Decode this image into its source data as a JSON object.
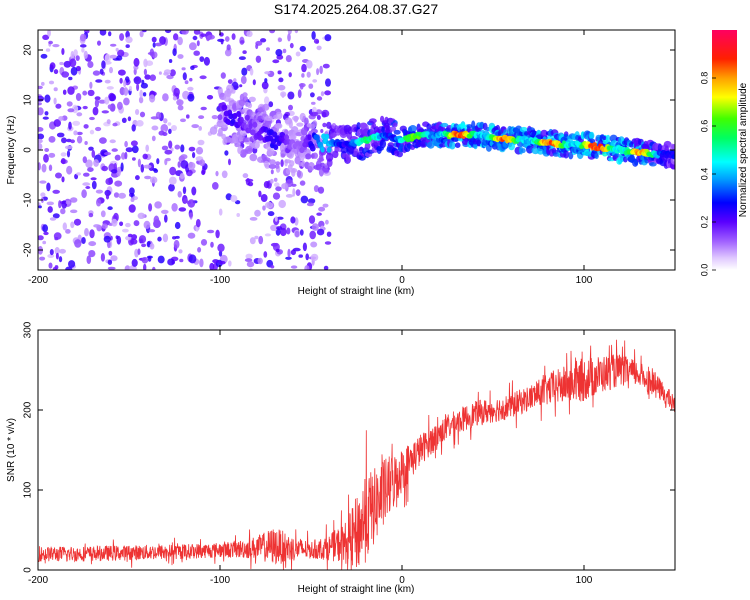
{
  "chart_data": [
    {
      "type": "heatmap",
      "title": "S174.2025.264.08.37.G27",
      "xlabel": "Height of straight line (km)",
      "ylabel": "Frequency (Hz)",
      "xlim": [
        -200,
        150
      ],
      "ylim": [
        -24,
        24
      ],
      "x_ticks": [
        -200,
        -100,
        0,
        100
      ],
      "y_ticks": [
        -20,
        -10,
        0,
        10,
        20
      ],
      "colorbar": {
        "label": "Normalized spectral amplitude",
        "range": [
          0,
          1
        ],
        "ticks": [
          "0.0",
          "0.2",
          "0.4",
          "0.6",
          "0.8"
        ],
        "colors": [
          "#ffffff",
          "#d8b8ff",
          "#8a2be2",
          "#0000ff",
          "#00ffff",
          "#00ff00",
          "#ffff00",
          "#ff8000",
          "#ff0000",
          "#ff0080"
        ]
      },
      "ridge": {
        "x": [
          -100,
          -90,
          -80,
          -70,
          -60,
          -50,
          -40,
          -30,
          -20,
          -10,
          0,
          10,
          20,
          30,
          40,
          50,
          60,
          70,
          80,
          90,
          100,
          110,
          120,
          130,
          140,
          150
        ],
        "freq": [
          8,
          6,
          4,
          2,
          1,
          1.5,
          1.5,
          1,
          2,
          3,
          2,
          3,
          3,
          3,
          3,
          2.5,
          2,
          2,
          1.5,
          1,
          1,
          0.5,
          0,
          -0.5,
          -0.8,
          -1
        ],
        "amplitude": [
          0.2,
          0.25,
          0.3,
          0.25,
          0.2,
          0.3,
          0.45,
          0.5,
          0.55,
          0.55,
          0.6,
          0.65,
          0.7,
          0.85,
          0.8,
          0.85,
          0.8,
          0.8,
          0.85,
          0.8,
          0.85,
          0.9,
          0.85,
          0.8,
          0.6,
          0.4
        ]
      },
      "noise_region": {
        "x_range": [
          -200,
          -40
        ],
        "freq_range": [
          -24,
          24
        ],
        "amplitude_range": [
          0.05,
          0.25
        ]
      }
    },
    {
      "type": "line",
      "xlabel": "Height of straight line (km)",
      "ylabel": "SNR (10 * v/v)",
      "xlim": [
        -200,
        150
      ],
      "ylim": [
        0,
        300
      ],
      "x_ticks": [
        -200,
        -100,
        0,
        100
      ],
      "y_ticks": [
        0,
        100,
        200,
        300
      ],
      "color": "#ee3333",
      "series": [
        {
          "name": "SNR",
          "x": [
            -200,
            -180,
            -160,
            -140,
            -120,
            -100,
            -90,
            -80,
            -70,
            -60,
            -50,
            -40,
            -30,
            -25,
            -20,
            -15,
            -10,
            -5,
            0,
            10,
            20,
            30,
            40,
            50,
            60,
            70,
            80,
            90,
            100,
            110,
            120,
            130,
            140,
            150
          ],
          "mean": [
            20,
            20,
            21,
            22,
            23,
            25,
            26,
            28,
            30,
            27,
            25,
            28,
            35,
            45,
            65,
            80,
            95,
            110,
            125,
            150,
            170,
            185,
            195,
            200,
            205,
            215,
            225,
            232,
            238,
            245,
            250,
            245,
            230,
            205
          ],
          "spread": [
            12,
            12,
            12,
            12,
            12,
            12,
            14,
            18,
            30,
            20,
            14,
            20,
            35,
            60,
            70,
            60,
            55,
            45,
            35,
            25,
            20,
            20,
            20,
            20,
            20,
            20,
            25,
            30,
            35,
            30,
            25,
            20,
            18,
            15
          ]
        }
      ]
    }
  ]
}
